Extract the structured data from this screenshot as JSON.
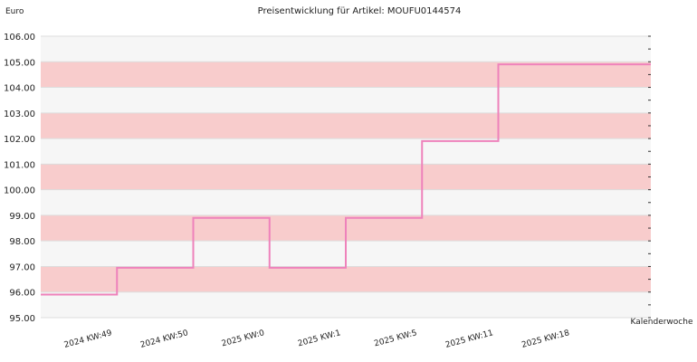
{
  "chart_data": {
    "type": "line",
    "title": "Preisentwicklung für Artikel: MOUFU0144574",
    "ylabel": "Euro",
    "xlabel": "Kalenderwoche",
    "ylim": [
      95.0,
      106.0
    ],
    "yticks": [
      95.0,
      96.0,
      97.0,
      98.0,
      99.0,
      100.0,
      101.0,
      102.0,
      103.0,
      104.0,
      105.0,
      106.0
    ],
    "categories": [
      "2024 KW:49",
      "2024 KW:50",
      "2025 KW:0",
      "2025 KW:1",
      "2025 KW:5",
      "2025 KW:11",
      "2025 KW:18"
    ],
    "series": [
      {
        "values": [
          95.9,
          96.95,
          98.9,
          96.95,
          98.9,
          101.9,
          104.9
        ]
      }
    ],
    "grid": true,
    "band_colors": [
      "#f6f6f6",
      "#f8cccc"
    ],
    "line_color": "#ee82bb"
  }
}
